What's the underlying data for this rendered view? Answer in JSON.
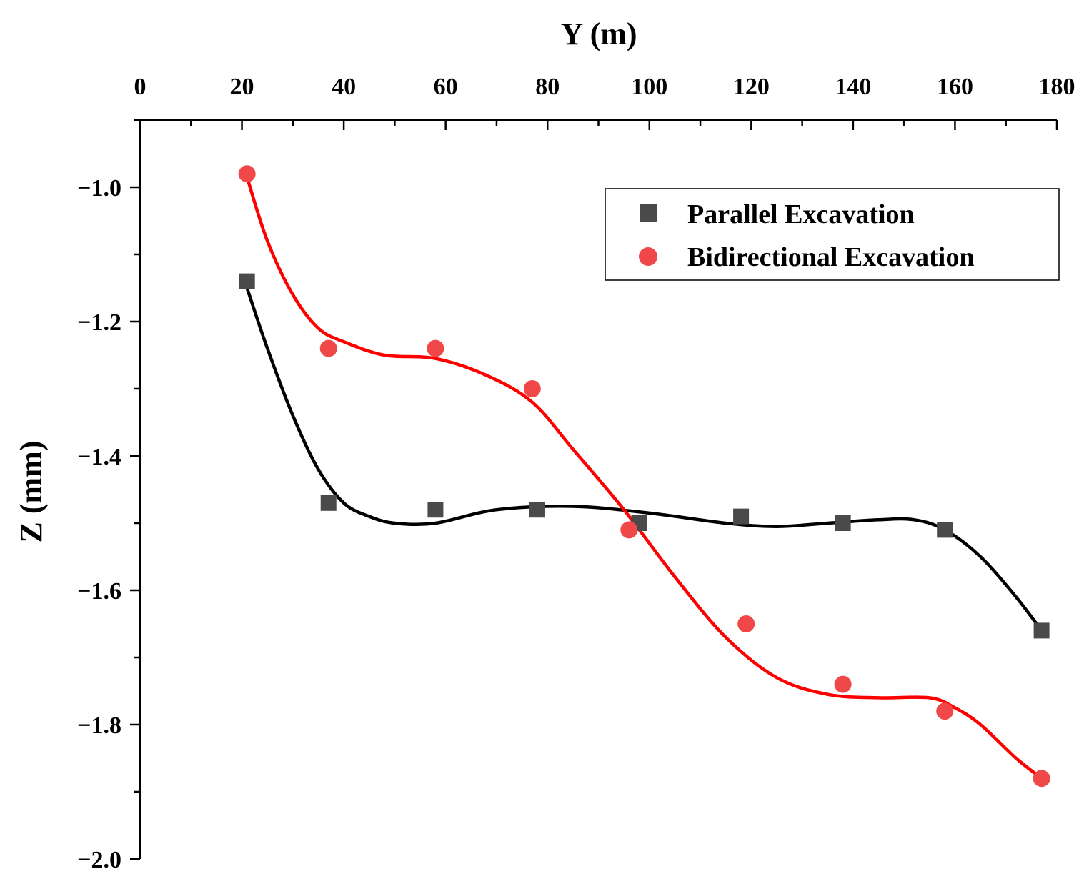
{
  "chart_data": {
    "type": "scatter",
    "xlabel": "Y (m)",
    "ylabel": "Z (mm)",
    "xlim": [
      0,
      180
    ],
    "ylim": [
      -2.0,
      -0.9
    ],
    "x_ticks": [
      "0",
      "20",
      "40",
      "60",
      "80",
      "100",
      "120",
      "140",
      "160",
      "180"
    ],
    "y_ticks": [
      "-1.0",
      "-1.2",
      "-1.4",
      "-1.6",
      "-1.8",
      "-2.0"
    ],
    "x_axis_position": "top",
    "grid": false,
    "legend_position": "top-right",
    "series": [
      {
        "name": "Parallel Excavation",
        "marker": "square",
        "color": "#4a4a4a",
        "line_color": "#000000",
        "x": [
          21,
          37,
          58,
          78,
          98,
          118,
          138,
          158,
          177
        ],
        "y": [
          -1.14,
          -1.47,
          -1.48,
          -1.48,
          -1.5,
          -1.49,
          -1.5,
          -1.51,
          -1.66
        ],
        "fit_x": [
          21,
          25,
          30,
          35,
          40,
          45,
          50,
          58,
          70,
          85,
          100,
          115,
          125,
          135,
          145,
          152,
          158,
          165,
          172,
          177
        ],
        "fit_y": [
          -1.15,
          -1.24,
          -1.34,
          -1.42,
          -1.47,
          -1.49,
          -1.5,
          -1.5,
          -1.48,
          -1.475,
          -1.485,
          -1.5,
          -1.505,
          -1.5,
          -1.495,
          -1.495,
          -1.51,
          -1.55,
          -1.61,
          -1.66
        ]
      },
      {
        "name": "Bidirectional Excavation",
        "marker": "circle",
        "color": "#f04848",
        "line_color": "#ff0000",
        "x": [
          21,
          37,
          58,
          77,
          96,
          119,
          138,
          158,
          177
        ],
        "y": [
          -0.98,
          -1.24,
          -1.24,
          -1.3,
          -1.51,
          -1.65,
          -1.74,
          -1.78,
          -1.88
        ],
        "fit_x": [
          21,
          25,
          30,
          35,
          40,
          48,
          58,
          68,
          77,
          85,
          95,
          105,
          115,
          125,
          135,
          145,
          155,
          160,
          165,
          172,
          177
        ],
        "fit_y": [
          -0.985,
          -1.08,
          -1.16,
          -1.21,
          -1.23,
          -1.25,
          -1.255,
          -1.28,
          -1.32,
          -1.39,
          -1.48,
          -1.58,
          -1.67,
          -1.73,
          -1.755,
          -1.76,
          -1.76,
          -1.775,
          -1.8,
          -1.85,
          -1.88
        ]
      }
    ]
  }
}
